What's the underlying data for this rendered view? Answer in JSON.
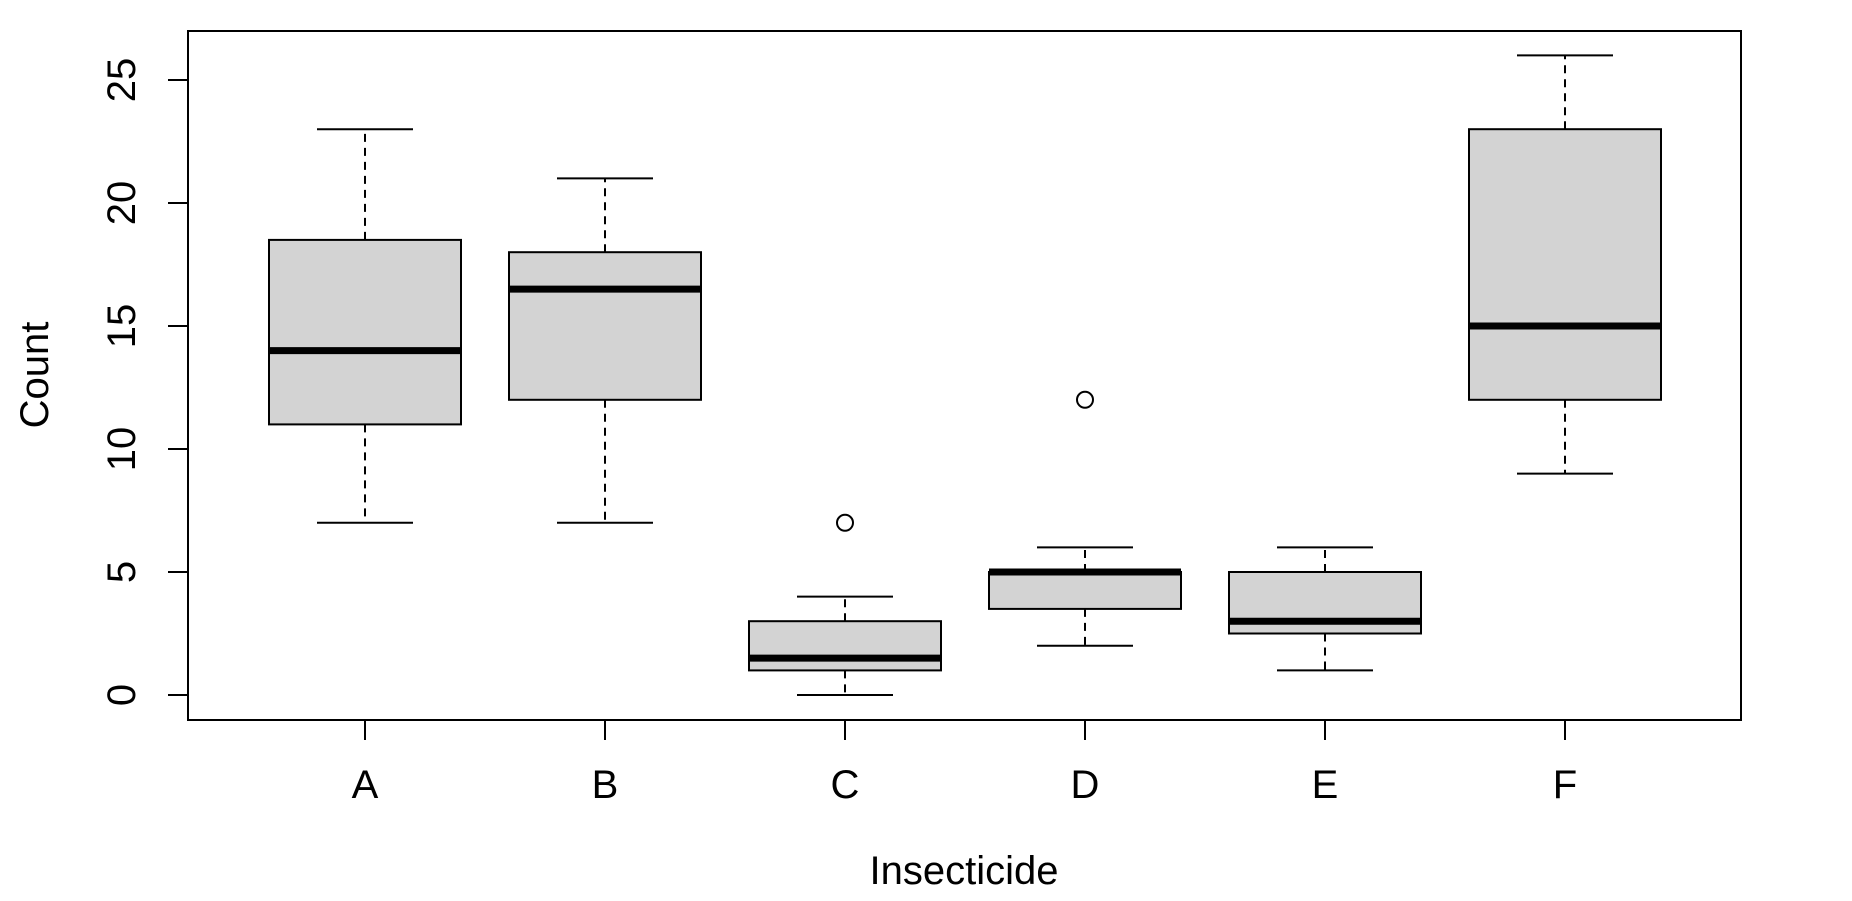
{
  "chart_data": {
    "type": "boxplot",
    "xlabel": "Insecticide",
    "ylabel": "Count",
    "ylim": [
      -1,
      27
    ],
    "yticks": [
      0,
      5,
      10,
      15,
      20,
      25
    ],
    "categories": [
      "A",
      "B",
      "C",
      "D",
      "E",
      "F"
    ],
    "boxes": [
      {
        "name": "A",
        "whisker_low": 7,
        "q1": 11,
        "median": 14,
        "q3": 18.5,
        "whisker_high": 23,
        "outliers": []
      },
      {
        "name": "B",
        "whisker_low": 7,
        "q1": 12,
        "median": 16.5,
        "q3": 18,
        "whisker_high": 21,
        "outliers": []
      },
      {
        "name": "C",
        "whisker_low": 0,
        "q1": 1,
        "median": 1.5,
        "q3": 3,
        "whisker_high": 4,
        "outliers": [
          7
        ]
      },
      {
        "name": "D",
        "whisker_low": 2,
        "q1": 3.5,
        "median": 5,
        "q3": 5,
        "whisker_high": 6,
        "outliers": [
          12
        ]
      },
      {
        "name": "E",
        "whisker_low": 1,
        "q1": 2.5,
        "median": 3,
        "q3": 5,
        "whisker_high": 6,
        "outliers": []
      },
      {
        "name": "F",
        "whisker_low": 9,
        "q1": 12,
        "median": 15,
        "q3": 23,
        "whisker_high": 26,
        "outliers": []
      }
    ],
    "colors": {
      "box_fill": "#d3d3d3",
      "stroke": "#000000",
      "background": "#ffffff"
    },
    "grid": false,
    "legend": "none"
  }
}
